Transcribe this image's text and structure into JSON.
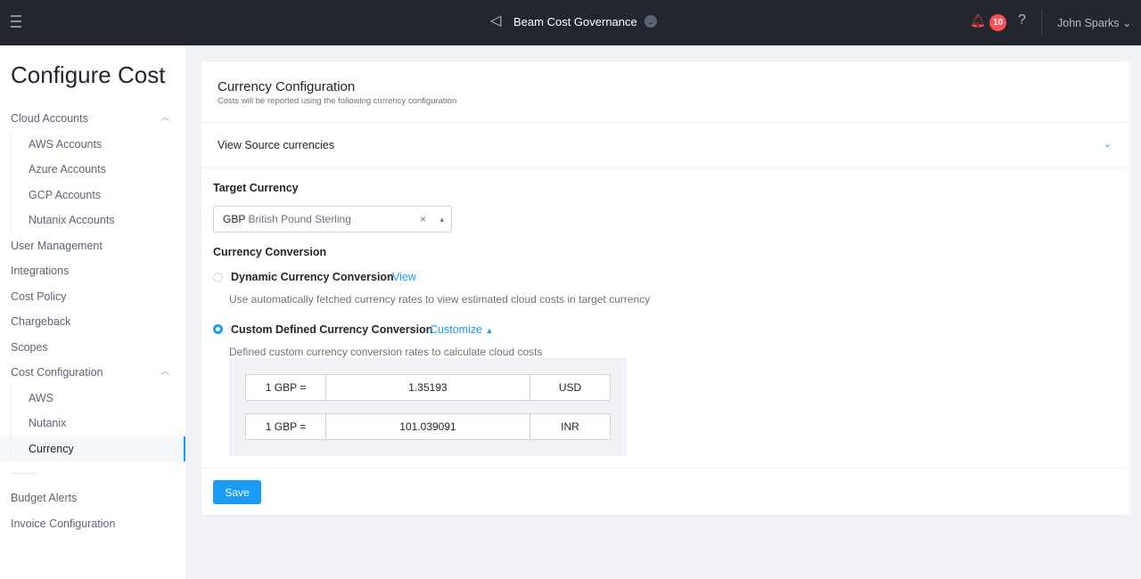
{
  "topbar": {
    "app_name": "Beam Cost Governance",
    "notification_count": "10",
    "help": "?",
    "user": "John Sparks"
  },
  "sidebar": {
    "title": "Configure Cost",
    "items": [
      {
        "label": "Cloud Accounts"
      },
      {
        "label": "AWS Accounts"
      },
      {
        "label": "Azure Accounts"
      },
      {
        "label": "GCP Accounts"
      },
      {
        "label": "Nutanix Accounts"
      },
      {
        "label": "User Management"
      },
      {
        "label": "Integrations"
      },
      {
        "label": "Cost Policy"
      },
      {
        "label": "Chargeback"
      },
      {
        "label": "Scopes"
      },
      {
        "label": "Cost Configuration"
      },
      {
        "label": "AWS"
      },
      {
        "label": "Nutanix"
      },
      {
        "label": "Currency"
      },
      {
        "label": "Budget Alerts"
      },
      {
        "label": "Invoice Configuration"
      }
    ],
    "active": "Currency"
  },
  "main": {
    "title": "Currency Configuration",
    "subtitle": "Costs will be reported using the following currency configuration",
    "view_source": "View Source currencies",
    "target_label": "Target Currency",
    "target_code": "GBP",
    "target_name": "British Pound Sterling",
    "conversion_label": "Currency Conversion",
    "dynamic": {
      "label": "Dynamic Currency Conversion",
      "link": "View",
      "desc": "Use automatically fetched currency rates to view estimated cloud costs in target currency",
      "selected": false
    },
    "custom": {
      "label": "Custom Defined Currency Conversion",
      "link": "Customize",
      "desc": "Defined custom currency conversion rates to calculate cloud costs",
      "selected": true
    },
    "rates": [
      {
        "base": "1 GBP =",
        "value": "1.35193",
        "currency": "USD"
      },
      {
        "base": "1 GBP =",
        "value": "101.039091",
        "currency": "INR"
      }
    ],
    "save": "Save"
  },
  "colors": {
    "accent": "#1b9cf4",
    "topbar": "#22272f",
    "badge": "#ff4d57"
  }
}
